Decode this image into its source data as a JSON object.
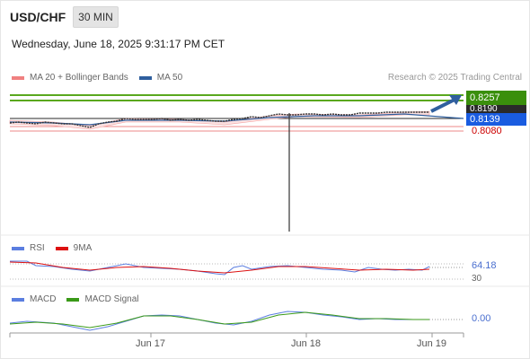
{
  "header": {
    "symbol": "USD/CHF",
    "timeframe": "30 MIN",
    "datetime": "Wednesday, June 18, 2025 9:31:17 PM CET"
  },
  "legend": {
    "ma20_label": "MA 20 + Bollinger Bands",
    "ma20_color": "#f08080",
    "ma50_label": "MA 50",
    "ma50_color": "#2f5f9e",
    "credit": "Research © 2025 Trading Central"
  },
  "price_tags": {
    "target": {
      "value": "0.8257",
      "color": "#3a8f0c"
    },
    "level": {
      "value": "0.8190",
      "color": "#2a2a2a"
    },
    "current": {
      "value": "0.8139",
      "color": "#1a5ce0"
    },
    "support": {
      "value": "0.8080",
      "color": "#cc0000"
    }
  },
  "rsi_panel": {
    "rsi_label": "RSI",
    "rsi_color": "#5b7ee0",
    "ma_label": "9MA",
    "ma_color": "#dd1111",
    "value": "64.18",
    "lower_tick": "30"
  },
  "macd_panel": {
    "macd_label": "MACD",
    "macd_color": "#5b7ee0",
    "signal_label": "MACD Signal",
    "signal_color": "#3a9a18",
    "value": "0.00"
  },
  "x_axis": {
    "labels": [
      "Jun 17",
      "Jun 18",
      "Jun 19"
    ]
  },
  "chart_data": {
    "type": "line",
    "series": [
      {
        "name": "MA 20 + Bollinger Bands",
        "values": []
      },
      {
        "name": "MA 50",
        "values": []
      }
    ],
    "resistance_levels": [
      0.8257,
      0.819
    ],
    "current_price": 0.8139,
    "support_level": 0.808,
    "direction": "up"
  }
}
